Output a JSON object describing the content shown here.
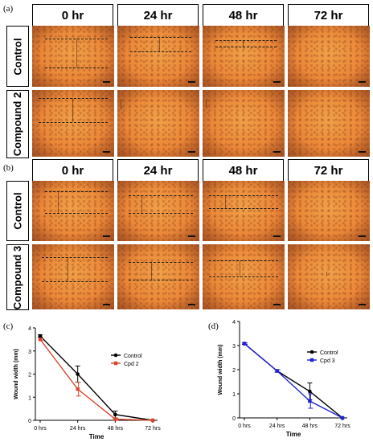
{
  "panel_labels": {
    "a": "(a)",
    "b": "(b)",
    "c": "(c)",
    "d": "(d)"
  },
  "time_headers": [
    "0 hr",
    "24 hr",
    "48 hr",
    "72 hr"
  ],
  "row_labels": {
    "a_top": "Control",
    "a_bottom": "Compound 2",
    "b_top": "Control",
    "b_bottom": "Compound 3"
  },
  "chart_data": [
    {
      "type": "line",
      "x": [
        "0 hrs",
        "24 hrs",
        "48 hrs",
        "72 hrs"
      ],
      "xlabel": "Time",
      "ylabel": "Wound width (mm)",
      "ylim": [
        0,
        4
      ],
      "yticks": [
        0,
        1,
        2,
        3,
        4
      ],
      "series": [
        {
          "name": "Control",
          "color": "#000000",
          "values": [
            3.65,
            2.0,
            0.25,
            0.0
          ],
          "errors": [
            0.05,
            0.35,
            0.15,
            0.0
          ]
        },
        {
          "name": "Cpd 2",
          "color": "#d9442a",
          "values": [
            3.5,
            1.35,
            0.05,
            0.0
          ],
          "errors": [
            0.05,
            0.3,
            0.05,
            0.0
          ]
        }
      ],
      "legend": "right"
    },
    {
      "type": "line",
      "x": [
        "0 hrs",
        "24 hrs",
        "48 hrs",
        "72 hrs"
      ],
      "xlabel": "Time",
      "ylabel": "Wound width (mm)",
      "ylim": [
        0,
        4
      ],
      "yticks": [
        0,
        1,
        2,
        3,
        4
      ],
      "series": [
        {
          "name": "Control",
          "color": "#000000",
          "values": [
            3.08,
            1.95,
            1.1,
            0.0
          ],
          "errors": [
            0.03,
            0.05,
            0.35,
            0.0
          ]
        },
        {
          "name": "Cpd 3",
          "color": "#1f22d6",
          "values": [
            3.08,
            1.95,
            0.7,
            0.0
          ],
          "errors": [
            0.03,
            0.05,
            0.3,
            0.0
          ]
        }
      ],
      "legend": "right"
    }
  ]
}
